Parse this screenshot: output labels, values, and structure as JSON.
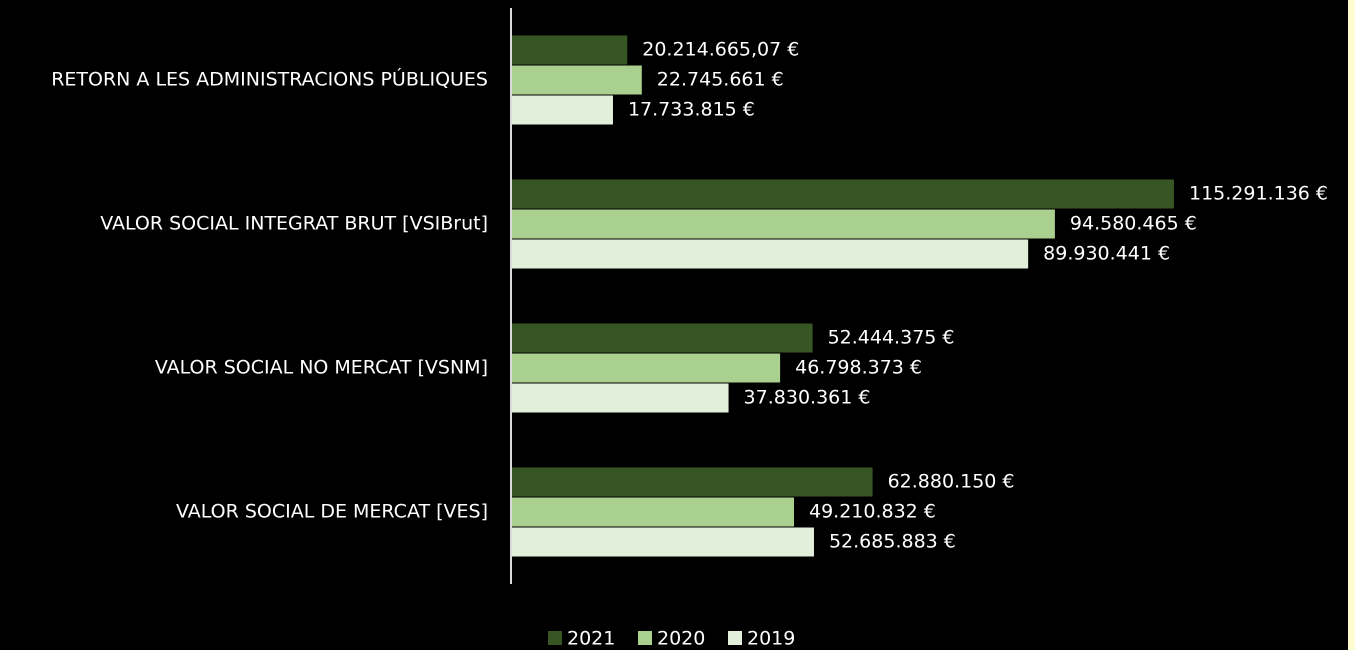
{
  "chart_data": {
    "type": "hbar",
    "categories": [
      "RETORN A LES ADMINISTRACIONS PÚBLIQUES",
      "VALOR SOCIAL INTEGRAT BRUT [VSIBrut]",
      "VALOR SOCIAL NO MERCAT [VSNM]",
      "VALOR SOCIAL DE MERCAT [VES]"
    ],
    "series": [
      {
        "name": "2021",
        "color": "#375623",
        "values": [
          20214665.07,
          115291136,
          52444375,
          62880150
        ],
        "value_labels": [
          "20.214.665,07 €",
          "115.291.136 €",
          "52.444.375 €",
          "62.880.150 €"
        ]
      },
      {
        "name": "2020",
        "color": "#a9d08e",
        "values": [
          22745661,
          94580465,
          46798373,
          49210832
        ],
        "value_labels": [
          "22.745.661 €",
          "94.580.465 €",
          "46.798.373 €",
          "49.210.832 €"
        ]
      },
      {
        "name": "2019",
        "color": "#e2efda",
        "values": [
          17733815,
          89930441,
          37830361,
          52685883
        ],
        "value_labels": [
          "17.733.815 €",
          "89.930.441 €",
          "37.830.361 €",
          "52.685.883 €"
        ]
      }
    ],
    "legend": "bottom"
  }
}
